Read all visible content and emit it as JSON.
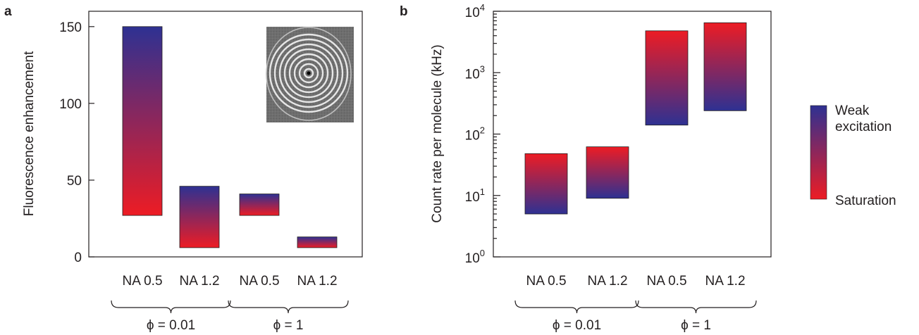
{
  "colors": {
    "weak": "#2e3192",
    "saturation": "#ed1c24",
    "axis": "#231f20"
  },
  "legend": {
    "top_label_line1": "Weak",
    "top_label_line2": "excitation",
    "bottom_label": "Saturation"
  },
  "chart_data": [
    {
      "panel": "a",
      "type": "bar",
      "scale": "linear",
      "ylabel": "Fluorescence enhancement",
      "ylim": [
        0,
        160
      ],
      "yticks": [
        0,
        50,
        100,
        150
      ],
      "ytick_labels": [
        "0",
        "50",
        "100",
        "150"
      ],
      "categories": [
        "NA 0.5",
        "NA 1.2",
        "NA 0.5",
        "NA 1.2"
      ],
      "ranges": [
        [
          27,
          150
        ],
        [
          6,
          46
        ],
        [
          27,
          41
        ],
        [
          6,
          13
        ]
      ],
      "groups": [
        {
          "label": "ϕ = 0.01",
          "start": 0,
          "end": 1
        },
        {
          "label": "ϕ = 1",
          "start": 2,
          "end": 3
        }
      ],
      "inset": "circular grating micrograph"
    },
    {
      "panel": "b",
      "type": "bar",
      "scale": "log",
      "ylabel": "Count rate per molecule (kHz)",
      "ylim": [
        1,
        10000
      ],
      "yticks": [
        1,
        10,
        100,
        1000,
        10000
      ],
      "ytick_labels": [
        {
          "base": "10",
          "exp": "0"
        },
        {
          "base": "10",
          "exp": "1"
        },
        {
          "base": "10",
          "exp": "2"
        },
        {
          "base": "10",
          "exp": "3"
        },
        {
          "base": "10",
          "exp": "4"
        }
      ],
      "categories": [
        "NA 0.5",
        "NA 1.2",
        "NA 0.5",
        "NA 1.2"
      ],
      "ranges": [
        [
          5,
          48
        ],
        [
          9,
          62
        ],
        [
          140,
          4800
        ],
        [
          240,
          6500
        ]
      ],
      "groups": [
        {
          "label": "ϕ = 0.01",
          "start": 0,
          "end": 1
        },
        {
          "label": "ϕ = 1",
          "start": 2,
          "end": 3
        }
      ]
    }
  ],
  "panel_labels": [
    "a",
    "b"
  ]
}
